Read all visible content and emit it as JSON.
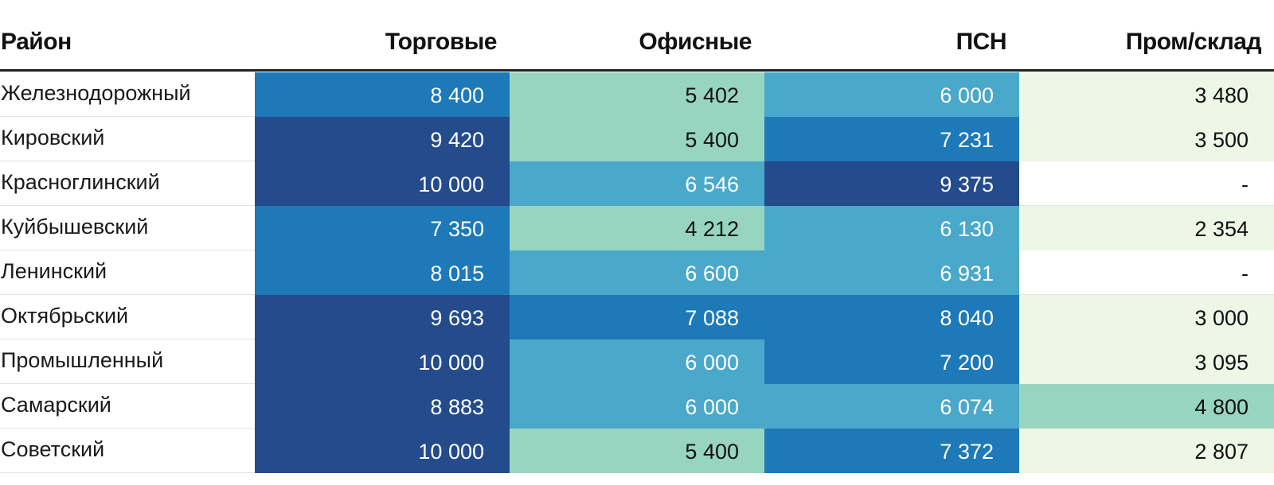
{
  "chart_data": {
    "type": "table",
    "columns": [
      "Район",
      "Торговые",
      "Офисные",
      "ПСН",
      "Пром/склад"
    ],
    "rows": [
      {
        "label": "Железнодорожный",
        "display": [
          "8 400",
          "5 402",
          "6 000",
          "3 480"
        ],
        "values": [
          8400,
          5402,
          6000,
          3480
        ]
      },
      {
        "label": "Кировский",
        "display": [
          "9 420",
          "5 400",
          "7 231",
          "3 500"
        ],
        "values": [
          9420,
          5400,
          7231,
          3500
        ]
      },
      {
        "label": "Красноглинский",
        "display": [
          "10 000",
          "6 546",
          "9 375",
          "-"
        ],
        "values": [
          10000,
          6546,
          9375,
          null
        ]
      },
      {
        "label": "Куйбышевский",
        "display": [
          "7 350",
          "4 212",
          "6 130",
          "2 354"
        ],
        "values": [
          7350,
          4212,
          6130,
          2354
        ]
      },
      {
        "label": "Ленинский",
        "display": [
          "8 015",
          "6 600",
          "6 931",
          "-"
        ],
        "values": [
          8015,
          6600,
          6931,
          null
        ]
      },
      {
        "label": "Октябрьский",
        "display": [
          "9 693",
          "7 088",
          "8 040",
          "3 000"
        ],
        "values": [
          9693,
          7088,
          8040,
          3000
        ]
      },
      {
        "label": "Промышленный",
        "display": [
          "10 000",
          "6 000",
          "7 200",
          "3 095"
        ],
        "values": [
          10000,
          6000,
          7200,
          3095
        ]
      },
      {
        "label": "Самарский",
        "display": [
          "8 883",
          "6 000",
          "6 074",
          "4 800"
        ],
        "values": [
          8883,
          6000,
          6074,
          4800
        ]
      },
      {
        "label": "Советский",
        "display": [
          "10 000",
          "5 400",
          "7 372",
          "2 807"
        ],
        "values": [
          10000,
          5400,
          7372,
          2807
        ]
      }
    ],
    "color_scale": {
      "thresholds": [
        4000,
        6000,
        7000,
        8800
      ],
      "colors": [
        "#edf7e6",
        "#97d5c0",
        "#4aa8cb",
        "#1d79b7",
        "#244b8b"
      ],
      "text_light": "#ffffff",
      "text_dark": "#111111"
    }
  }
}
